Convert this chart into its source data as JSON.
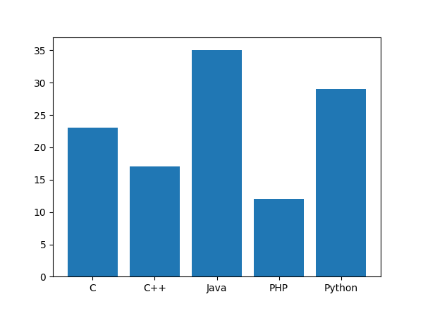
{
  "categories": [
    "C",
    "C++",
    "Java",
    "PHP",
    "Python"
  ],
  "values": [
    23,
    17,
    35,
    12,
    29
  ],
  "bar_color": "#2077b4",
  "ylim": [
    0,
    37
  ],
  "yticks": [
    0,
    5,
    10,
    15,
    20,
    25,
    30,
    35
  ],
  "background_color": "#ffffff"
}
